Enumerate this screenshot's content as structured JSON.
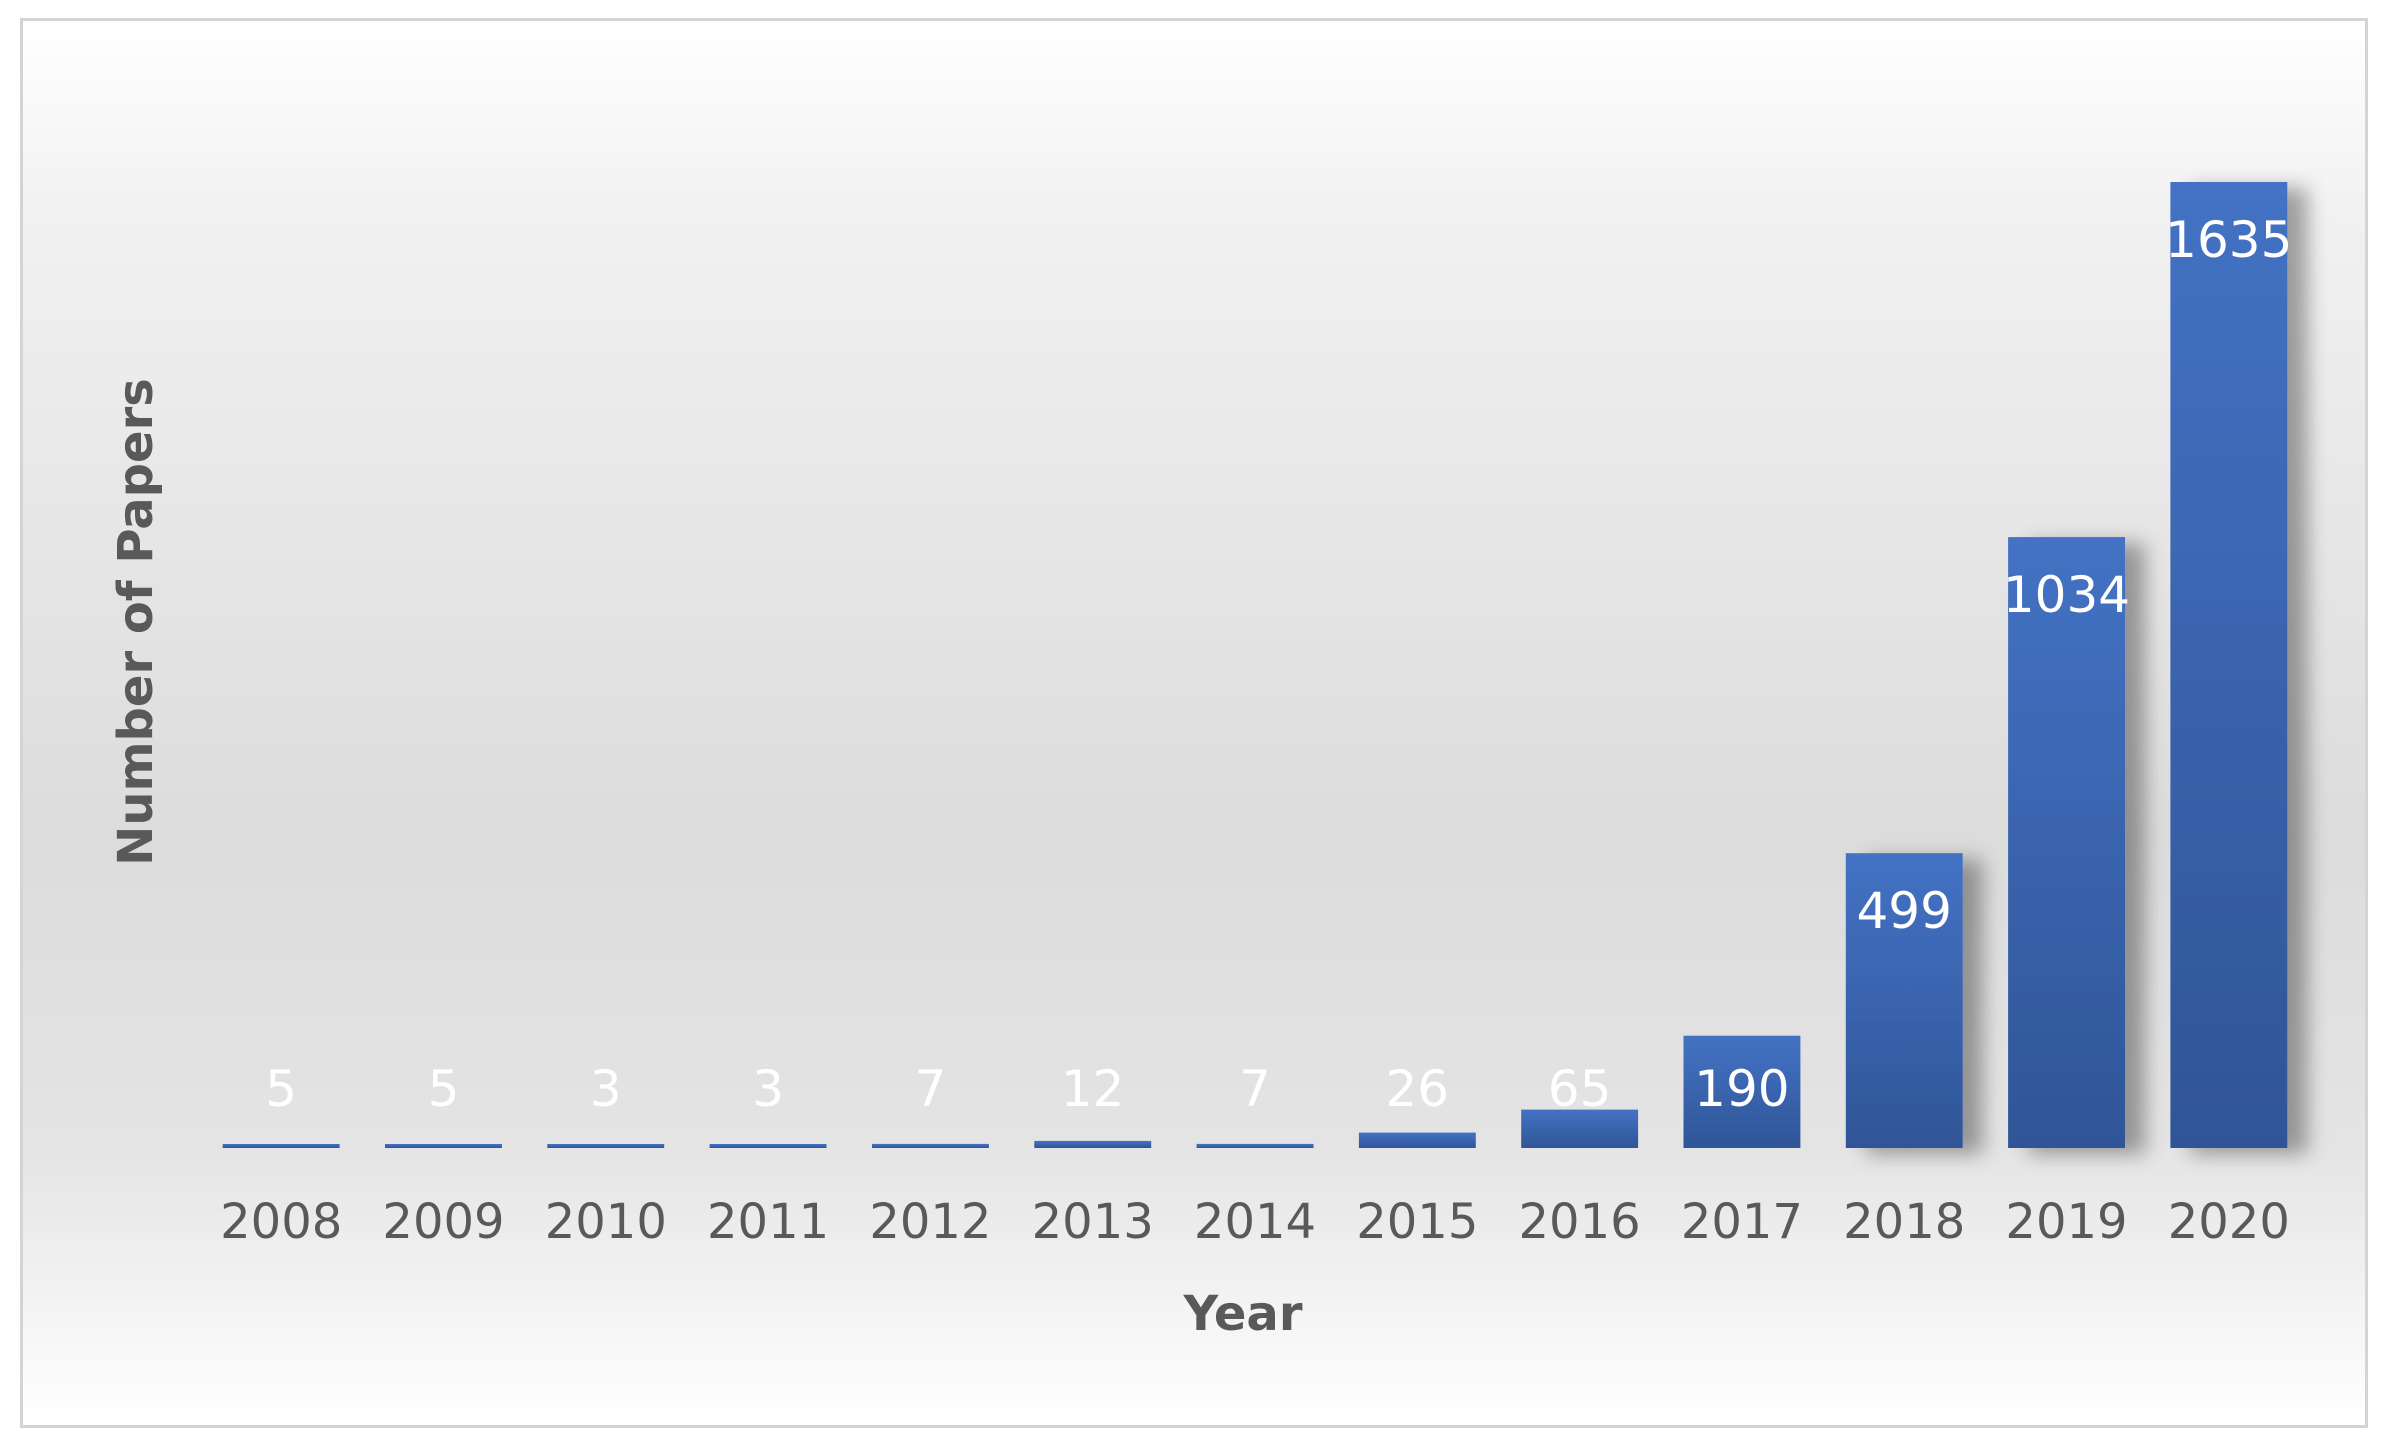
{
  "chart_data": {
    "type": "bar",
    "title": "",
    "xlabel": "Year",
    "ylabel": "Number of Papers",
    "categories": [
      "2008",
      "2009",
      "2010",
      "2011",
      "2012",
      "2013",
      "2014",
      "2015",
      "2016",
      "2017",
      "2018",
      "2019",
      "2020"
    ],
    "values": [
      5,
      5,
      3,
      3,
      7,
      12,
      7,
      26,
      65,
      190,
      499,
      1034,
      1635
    ],
    "value_labels": [
      "5",
      "5",
      "3",
      "3",
      "7",
      "12",
      "7",
      "26",
      "65",
      "190",
      "499",
      "1034",
      "1635"
    ],
    "ylim": [
      0,
      1635
    ],
    "grid": false,
    "legend": "none",
    "colors": {
      "bar_top": "#4472c4",
      "bar_bottom": "#2f5597",
      "data_label": "#ffffff",
      "axis_text": "#595959"
    }
  }
}
